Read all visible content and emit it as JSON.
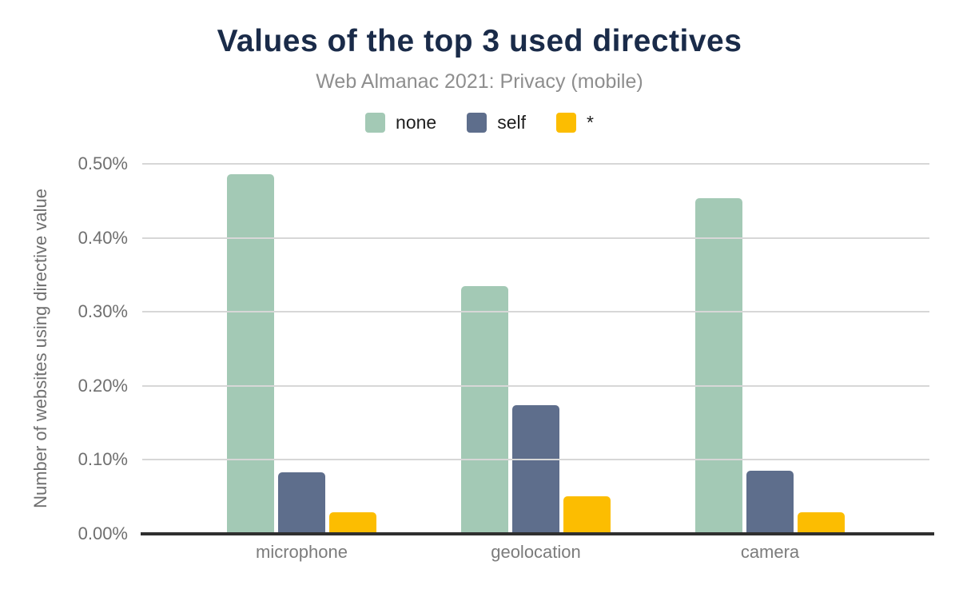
{
  "chart_data": {
    "type": "bar",
    "title": "Values of the top 3 used directives",
    "subtitle": "Web Almanac 2021: Privacy (mobile)",
    "ylabel": "Number of websites using directive value",
    "xlabel": "",
    "categories": [
      "microphone",
      "geolocation",
      "camera"
    ],
    "series": [
      {
        "name": "none",
        "color": "#a3c9b5",
        "values": [
          0.486,
          0.335,
          0.454
        ]
      },
      {
        "name": "self",
        "color": "#5e6e8c",
        "values": [
          0.083,
          0.174,
          0.085
        ]
      },
      {
        "name": "*",
        "color": "#fcbd01",
        "values": [
          0.029,
          0.051,
          0.029
        ]
      }
    ],
    "y_ticks": [
      "0.00%",
      "0.10%",
      "0.20%",
      "0.30%",
      "0.40%",
      "0.50%"
    ],
    "ylim": [
      0,
      0.5
    ],
    "grid": true,
    "legend_position": "top",
    "value_unit": "percent"
  },
  "colors": {
    "title": "#1a2b49",
    "subtitle": "#8e8e8e",
    "axis_text": "#6f6f6f",
    "gridline": "#d7d7d7",
    "baseline": "#2f2f2f",
    "background": "#ffffff"
  }
}
